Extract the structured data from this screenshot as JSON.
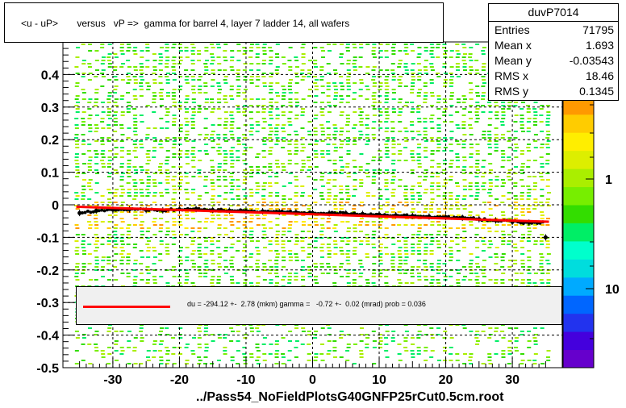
{
  "title": "<u - uP>       versus   vP =>  gamma for barrel 4, layer 7 ladder 14, all wafers",
  "stats": {
    "name": "duvP7014",
    "rows": [
      {
        "label": "Entries",
        "value": "71795"
      },
      {
        "label": "Mean x",
        "value": "1.693"
      },
      {
        "label": "Mean y",
        "value": "-0.03543"
      },
      {
        "label": "RMS x",
        "value": "18.46"
      },
      {
        "label": "RMS y",
        "value": "0.1345"
      }
    ]
  },
  "fit_text": "du = -294.12 +-  2.78 (mkm) gamma =   -0.72 +-  0.02 (mrad) prob = 0.036",
  "footer": "../Pass54_NoFieldPlotsG40GNFP25rCut0.5cm.root",
  "colors": {
    "fit_line": "#ff0000",
    "profile": "#000000",
    "grid": "#000000",
    "palette": [
      "#6600cc",
      "#4400dd",
      "#2233ee",
      "#0066ff",
      "#00aaff",
      "#00dddd",
      "#00ffcc",
      "#00ee66",
      "#33dd00",
      "#77ee00",
      "#aaee00",
      "#ddee00",
      "#ffee00",
      "#ffcc00",
      "#ff9900",
      "#ff6600",
      "#ff3300",
      "#ff0000"
    ]
  },
  "chart_data": {
    "type": "heatmap",
    "title": "<u - uP>       versus   vP =>  gamma for barrel 4, layer 7 ladder 14, all wafers",
    "xlim": [
      -37.5,
      37.5
    ],
    "ylim": [
      -0.5,
      0.5
    ],
    "x_ticks": [
      -30,
      -20,
      -10,
      0,
      10,
      20,
      30
    ],
    "y_ticks": [
      -0.5,
      -0.4,
      -0.3,
      -0.2,
      -0.1,
      0,
      0.1,
      0.2,
      0.3,
      0.4
    ],
    "x_tick_labels": [
      "-30",
      "-20",
      "-10",
      "0",
      "10",
      "20",
      "30"
    ],
    "y_tick_labels": [
      "-0.5",
      "-0.4",
      "-0.3",
      "-0.2",
      "-0.1",
      "0",
      "0.1",
      "0.2",
      "0.3",
      "0.4"
    ],
    "z_scale": "log",
    "z_tick_labels": [
      "1",
      "10"
    ],
    "grid": true,
    "fit": {
      "x": [
        -35.5,
        35.5
      ],
      "y": [
        -0.006,
        -0.052
      ]
    },
    "profile": {
      "x": [
        -35,
        -32.5,
        -30,
        -27.5,
        -25,
        -22.5,
        -20,
        -17.5,
        -15,
        -12.5,
        -10,
        -7.5,
        -5,
        -2.5,
        0,
        2.5,
        5,
        7.5,
        10,
        12.5,
        15,
        17.5,
        20,
        22.5,
        25,
        27.5,
        30,
        32.5,
        35
      ],
      "y": [
        -0.025,
        -0.018,
        -0.015,
        -0.014,
        -0.016,
        -0.017,
        -0.014,
        -0.013,
        -0.016,
        -0.018,
        -0.019,
        -0.02,
        -0.022,
        -0.023,
        -0.025,
        -0.026,
        -0.026,
        -0.028,
        -0.03,
        -0.032,
        -0.034,
        -0.036,
        -0.038,
        -0.04,
        -0.044,
        -0.048,
        -0.052,
        -0.055,
        -0.1
      ]
    }
  }
}
